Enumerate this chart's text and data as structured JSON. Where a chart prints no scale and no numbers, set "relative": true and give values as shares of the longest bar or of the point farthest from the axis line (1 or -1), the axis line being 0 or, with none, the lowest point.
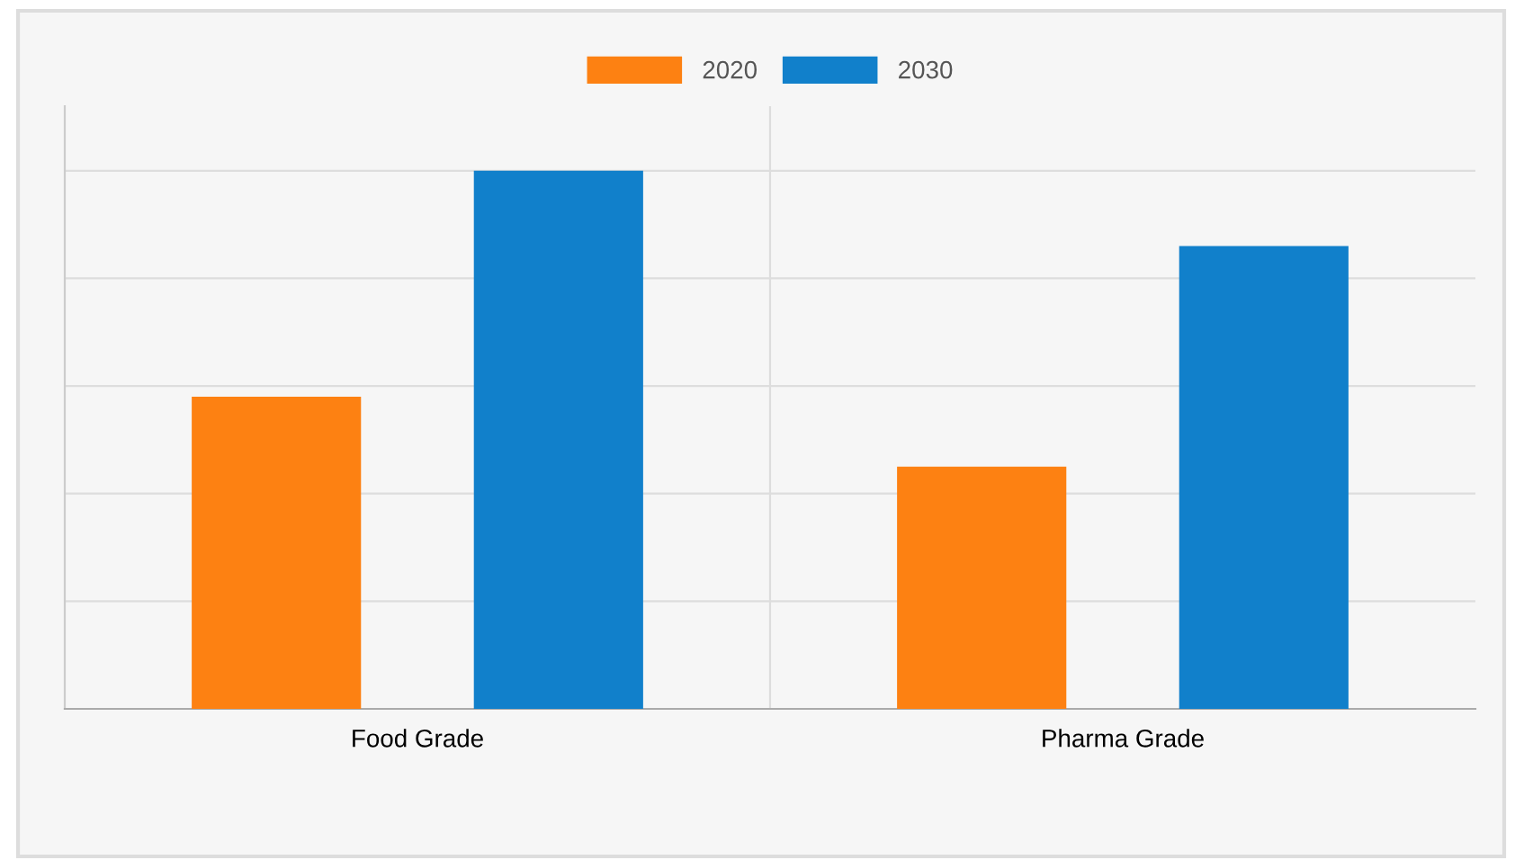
{
  "chart_data": {
    "type": "bar",
    "categories": [
      "Food Grade",
      "Pharma Grade"
    ],
    "relative": true,
    "series": [
      {
        "name": "2020",
        "color": "#fd8112",
        "values": [
          0.58,
          0.45
        ]
      },
      {
        "name": "2030",
        "color": "#1180cb",
        "values": [
          1,
          0.86
        ]
      }
    ],
    "grid": true,
    "legend": "top"
  }
}
